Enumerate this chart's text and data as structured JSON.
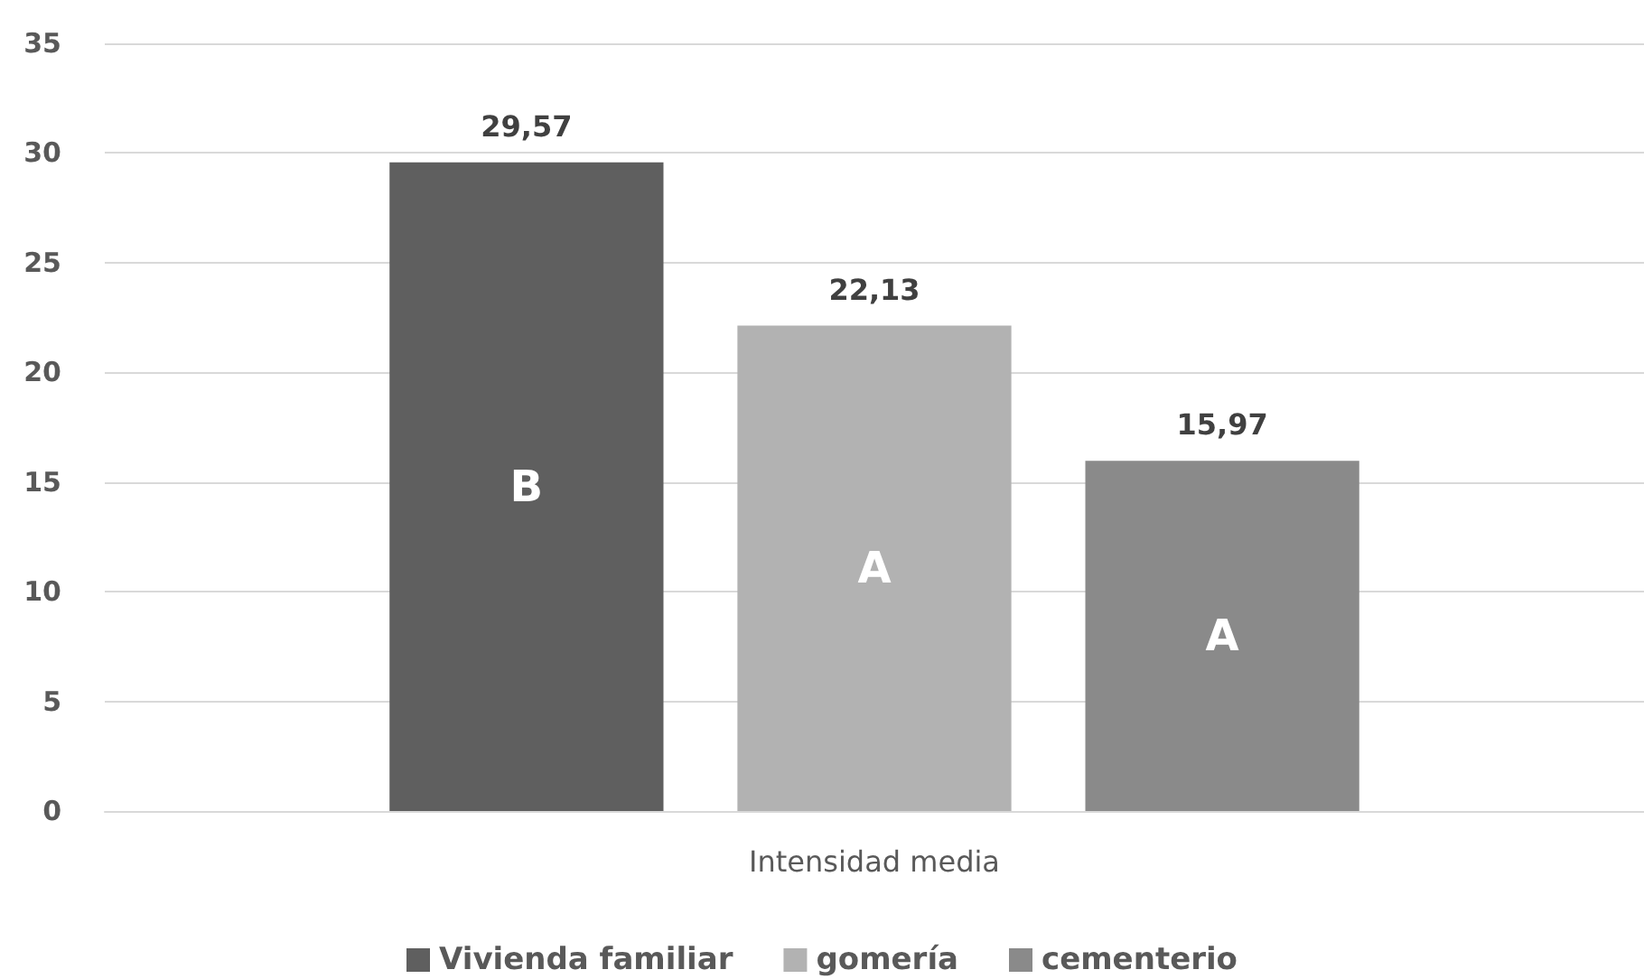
{
  "chart_data": {
    "type": "bar",
    "categories": [
      "Intensidad media"
    ],
    "series": [
      {
        "name": "Vivienda familiar",
        "color": "#5f5f5f",
        "values": [
          29.57
        ],
        "value_labels": [
          "29,57"
        ]
      },
      {
        "name": "gomería",
        "color": "#b2b2b2",
        "values": [
          22.13
        ],
        "value_labels": [
          "22,13"
        ]
      },
      {
        "name": "cementerio",
        "color": "#8a8a8a",
        "values": [
          15.97
        ],
        "value_labels": [
          "15,97"
        ]
      }
    ],
    "ylim": [
      0,
      35
    ],
    "yticks": [
      0,
      5,
      10,
      15,
      20,
      25,
      30,
      35
    ],
    "grid": "y",
    "legend": "bottom",
    "annotations": [
      "B",
      "A",
      "A"
    ]
  }
}
